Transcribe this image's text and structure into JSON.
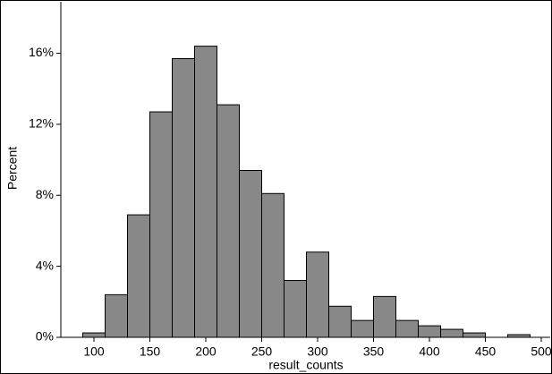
{
  "chart_data": {
    "type": "histogram",
    "x_label": "result_counts",
    "y_label": "Percent",
    "bins": [
      90,
      110,
      130,
      150,
      170,
      190,
      210,
      230,
      250,
      270,
      290,
      310,
      330,
      350,
      370,
      390,
      410,
      430,
      450,
      470,
      490
    ],
    "values": [
      0.25,
      2.4,
      6.9,
      12.7,
      15.7,
      16.4,
      13.1,
      9.4,
      8.1,
      3.2,
      4.8,
      1.75,
      0.95,
      2.3,
      0.95,
      0.65,
      0.45,
      0.25,
      0,
      0.15
    ],
    "color": "#888888",
    "xlim": [
      70.4,
      508
    ],
    "xticks": [
      100,
      150,
      200,
      250,
      300,
      350,
      400,
      450,
      500
    ],
    "ylim": [
      0,
      18.9
    ],
    "yticks": [
      {
        "value": 0,
        "label": "0%"
      },
      {
        "value": 4,
        "label": "4%"
      },
      {
        "value": 8,
        "label": "8%"
      },
      {
        "value": 12,
        "label": "12%"
      },
      {
        "value": 16,
        "label": "16%"
      }
    ]
  }
}
